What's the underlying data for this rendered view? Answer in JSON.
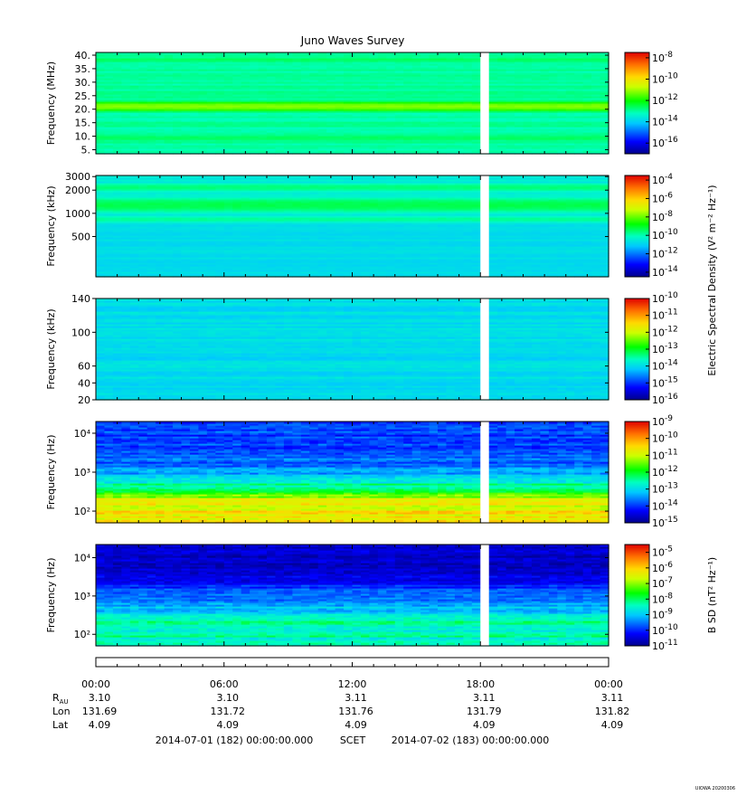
{
  "chart_data": {
    "type": "heatmap",
    "title": "Juno Waves Survey",
    "time_axis": {
      "ticks": [
        "00:00",
        "06:00",
        "12:00",
        "18:00",
        "00:00"
      ],
      "range_hours": [
        0,
        24
      ],
      "data_gap_hours": [
        18.0,
        18.4
      ]
    },
    "ephemeris": {
      "rows": [
        {
          "label": "R",
          "sub": "AU",
          "values": [
            "3.10",
            "3.10",
            "3.11",
            "3.11",
            "3.11"
          ]
        },
        {
          "label": "Lon",
          "sub": "",
          "values": [
            "131.69",
            "131.72",
            "131.76",
            "131.79",
            "131.82"
          ]
        },
        {
          "label": "Lat",
          "sub": "",
          "values": [
            "4.09",
            "4.09",
            "4.09",
            "4.09",
            "4.09"
          ]
        }
      ]
    },
    "footer": {
      "start": "2014-07-01 (182) 00:00:00.000",
      "frame": "SCET",
      "end": "2014-07-02 (183) 00:00:00.000"
    },
    "stamp": "UIOWA 20200306",
    "panels": [
      {
        "ylabel": "Frequency (MHz)",
        "yscale": "linear",
        "ylim": [
          3.5,
          41
        ],
        "yticks": [
          {
            "v": 5,
            "t": "5."
          },
          {
            "v": 10,
            "t": "10."
          },
          {
            "v": 15,
            "t": "15."
          },
          {
            "v": 20,
            "t": "20."
          },
          {
            "v": 25,
            "t": "25."
          },
          {
            "v": 30,
            "t": "30."
          },
          {
            "v": 35,
            "t": "35."
          },
          {
            "v": 40,
            "t": "40."
          }
        ],
        "cbar_exponents": [
          "-8",
          "-10",
          "-12",
          "-14",
          "-16"
        ],
        "cbar_range": [
          -17,
          -7.5
        ],
        "background_level": -13.0,
        "bands": [
          {
            "y": 21.2,
            "level": -11.2,
            "width": 0.022
          },
          {
            "y": 38.5,
            "level": -12.6,
            "width": 0.02
          },
          {
            "y": 9.5,
            "level": -12.6,
            "width": 0.02
          }
        ]
      },
      {
        "ylabel": "Frequency (kHz)",
        "yscale": "log",
        "ylim": [
          150,
          3100
        ],
        "yticks": [
          {
            "v": 500,
            "t": "500"
          },
          {
            "v": 1000,
            "t": "1000"
          },
          {
            "v": 2000,
            "t": "2000"
          },
          {
            "v": 3000,
            "t": "3000"
          }
        ],
        "cbar_exponents": [
          "-4",
          "-6",
          "-8",
          "-10",
          "-12",
          "-14"
        ],
        "cbar_range": [
          -14.5,
          -3.5
        ],
        "background_level": -10.5,
        "bands": [
          {
            "y": 1300,
            "level": -9.3,
            "width": 0.04
          },
          {
            "y": 2200,
            "level": -9.6,
            "width": 0.025
          },
          {
            "y": 850,
            "level": -9.8,
            "width": 0.02
          }
        ]
      },
      {
        "ylabel": "Frequency (kHz)",
        "yscale": "linear",
        "ylim": [
          20,
          140
        ],
        "yticks": [
          {
            "v": 20,
            "t": "20"
          },
          {
            "v": 40,
            "t": "40"
          },
          {
            "v": 60,
            "t": "60"
          },
          {
            "v": 100,
            "t": "100"
          },
          {
            "v": 140,
            "t": "140"
          }
        ],
        "cbar_exponents": [
          "-10",
          "-11",
          "-12",
          "-13",
          "-14",
          "-15",
          "-16"
        ],
        "cbar_range": [
          -16,
          -10
        ],
        "background_level": -14.0,
        "bands": []
      },
      {
        "ylabel": "Frequency (Hz)",
        "yscale": "log",
        "ylim": [
          50,
          20000
        ],
        "yticks": [
          {
            "v": 100,
            "t": "10²"
          },
          {
            "v": 1000,
            "t": "10³"
          },
          {
            "v": 10000,
            "t": "10⁴"
          }
        ],
        "cbar_exponents": [
          "-9",
          "-10",
          "-11",
          "-12",
          "-13",
          "-14",
          "-15"
        ],
        "cbar_range": [
          -15,
          -9
        ],
        "background_level": -13.5,
        "bands": []
      },
      {
        "ylabel": "Frequency (Hz)",
        "yscale": "log",
        "ylim": [
          50,
          22000
        ],
        "yticks": [
          {
            "v": 100,
            "t": "10²"
          },
          {
            "v": 1000,
            "t": "10³"
          },
          {
            "v": 10000,
            "t": "10⁴"
          }
        ],
        "cbar_exponents": [
          "-5",
          "-6",
          "-7",
          "-8",
          "-9",
          "-10",
          "-11"
        ],
        "cbar_range": [
          -11,
          -4.5
        ],
        "background_level": -9.0,
        "bands": []
      }
    ],
    "colorbar_labels": [
      {
        "text": "Electric Spectral Density (V² m⁻² Hz⁻¹)",
        "panels": [
          0,
          3
        ]
      },
      {
        "text": "B SD (nT² Hz⁻¹)",
        "panels": [
          4,
          4
        ]
      }
    ]
  }
}
